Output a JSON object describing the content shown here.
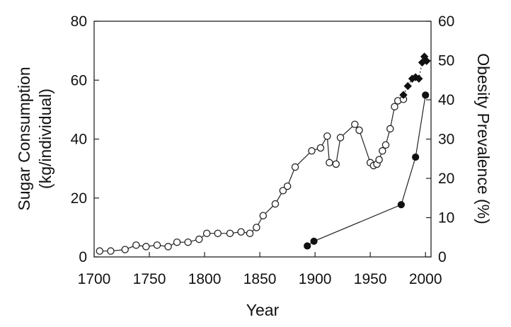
{
  "chart_data": {
    "type": "line",
    "title": "",
    "xlabel": "Year",
    "ylabel_left": [
      "Sugar Consumption",
      "(kg/individual)"
    ],
    "ylabel_right": "Obesity Prevalence (%)",
    "xlim": [
      1700,
      2005
    ],
    "ylim_left": [
      0,
      80
    ],
    "ylim_right": [
      0,
      60
    ],
    "x_ticks": [
      "1700",
      "1750",
      "1800",
      "1850",
      "1900",
      "1950",
      "2000"
    ],
    "y_left_ticks": [
      "0",
      "20",
      "40",
      "60",
      "80"
    ],
    "y_right_ticks": [
      "0",
      "10",
      "20",
      "30",
      "40",
      "50",
      "60"
    ],
    "grid": false,
    "series": [
      {
        "axis": "left",
        "marker": "open-circle",
        "x": [
          1705,
          1715,
          1728,
          1738,
          1747,
          1757,
          1767,
          1775,
          1785,
          1795,
          1802,
          1812,
          1823,
          1833,
          1841,
          1847,
          1853,
          1864,
          1871,
          1875,
          1882,
          1897,
          1905,
          1911,
          1913,
          1919,
          1923,
          1936,
          1940,
          1950,
          1953,
          1956,
          1958,
          1961,
          1964,
          1968,
          1972,
          1975,
          1980
        ],
        "y": [
          2,
          2,
          2.5,
          4,
          3.5,
          4,
          3.5,
          5,
          5,
          6,
          8,
          8,
          8,
          8.5,
          8,
          10,
          14,
          18,
          22.5,
          24,
          30.5,
          36,
          37,
          41,
          32,
          31.5,
          40.5,
          45,
          43,
          32,
          31,
          31.5,
          33,
          36,
          38,
          43.5,
          51,
          53,
          53.5
        ]
      },
      {
        "axis": "left",
        "marker": "filled-diamond",
        "x": [
          1980,
          1984,
          1988,
          1991,
          1994,
          1997,
          1999,
          2001
        ],
        "y": [
          55,
          58,
          60.5,
          61,
          60.5,
          66,
          68,
          66.5
        ]
      },
      {
        "axis": "right",
        "marker": "filled-circle",
        "x": [
          1893,
          1899,
          1978,
          1991,
          2000
        ],
        "y": [
          2.8,
          4,
          13.3,
          25.4,
          41.2
        ]
      }
    ]
  }
}
